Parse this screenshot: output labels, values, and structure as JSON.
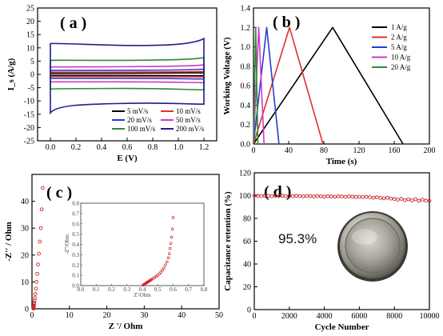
{
  "chart_data": [
    {
      "panel": "(a)",
      "type": "line",
      "xlabel": "E (V)",
      "ylabel": "I_s (A/g)",
      "xlim": [
        -0.1,
        1.3
      ],
      "ylim": [
        -25,
        25
      ],
      "xticks": [
        "0.0",
        "0.2",
        "0.4",
        "0.6",
        "0.8",
        "1.0",
        "1.2"
      ],
      "yticks": [
        "-25",
        "-20",
        "-15",
        "-10",
        "-5",
        "0",
        "5",
        "10",
        "15",
        "20",
        "25"
      ],
      "legend_position": "lower-right",
      "series": [
        {
          "name": "5 mV/s",
          "color": "#000000",
          "upper": [
            0.4,
            0.4,
            0.5,
            0.6
          ],
          "lower": [
            -0.4,
            -0.4,
            -0.4,
            -0.5
          ]
        },
        {
          "name": "10 mV/s",
          "color": "#e0302a",
          "upper": [
            0.8,
            0.8,
            0.9,
            1.1
          ],
          "lower": [
            -0.8,
            -0.8,
            -0.8,
            -0.9
          ]
        },
        {
          "name": "20 mV/s",
          "color": "#2a3bd0",
          "upper": [
            1.5,
            1.5,
            1.6,
            2.0
          ],
          "lower": [
            -1.5,
            -1.5,
            -1.5,
            -1.7
          ]
        },
        {
          "name": "50 mV/s",
          "color": "#d238c8",
          "upper": [
            2.8,
            2.8,
            3.0,
            3.6
          ],
          "lower": [
            -2.8,
            -2.8,
            -2.8,
            -3.1
          ]
        },
        {
          "name": "100 mV/s",
          "color": "#2c8a32",
          "upper": [
            5.3,
            5.2,
            5.4,
            6.3
          ],
          "lower": [
            -5.5,
            -5.3,
            -5.3,
            -5.8
          ]
        },
        {
          "name": "200 mV/s",
          "color": "#1e1e8c",
          "upper": [
            11.6,
            11.0,
            10.8,
            13.5
          ],
          "lower": [
            -14.5,
            -11.2,
            -10.6,
            -11.2
          ]
        }
      ]
    },
    {
      "panel": "(b)",
      "type": "line",
      "xlabel": "Time (s)",
      "ylabel": "Working Voltage (V)",
      "xlim": [
        0,
        200
      ],
      "ylim": [
        0,
        1.4
      ],
      "xticks": [
        "0",
        "40",
        "80",
        "120",
        "160",
        "200"
      ],
      "yticks": [
        "0.0",
        "0.2",
        "0.4",
        "0.6",
        "0.8",
        "1.0",
        "1.2",
        "1.4"
      ],
      "legend_position": "top-right",
      "series": [
        {
          "name": "1 A/g",
          "color": "#000000",
          "x": [
            0,
            90,
            170
          ],
          "y": [
            0,
            1.2,
            0
          ]
        },
        {
          "name": "2 A/g",
          "color": "#e0302a",
          "x": [
            0,
            41,
            79
          ],
          "y": [
            0,
            1.2,
            0
          ]
        },
        {
          "name": "5 A/g",
          "color": "#2a3bd0",
          "x": [
            0,
            15,
            29
          ],
          "y": [
            0,
            1.2,
            0
          ]
        },
        {
          "name": "10 A/g",
          "color": "#d238c8",
          "x": [
            0,
            6,
            12
          ],
          "y": [
            0,
            1.2,
            0
          ]
        },
        {
          "name": "20 A/g",
          "color": "#2c8a32",
          "x": [
            0,
            2.5,
            5
          ],
          "y": [
            0,
            1.2,
            0
          ]
        }
      ]
    },
    {
      "panel": "(c)",
      "type": "scatter",
      "xlabel": "Z '/ Ohm",
      "ylabel": "-Z'' / Ohm",
      "xlim": [
        0,
        50
      ],
      "ylim": [
        0,
        50
      ],
      "xticks": [
        "0",
        "10",
        "20",
        "30",
        "40",
        "50"
      ],
      "yticks": [
        "0",
        "10",
        "20",
        "30",
        "40"
      ],
      "series": [
        {
          "name": "",
          "color": "#cc2222",
          "x": [
            0.42,
            0.43,
            0.44,
            0.46,
            0.48,
            0.5,
            0.55,
            0.6,
            0.68,
            0.78,
            0.9,
            1.05,
            1.2,
            1.4,
            1.6,
            1.85,
            2.1,
            2.35,
            2.6,
            2.85
          ],
          "y": [
            0.1,
            0.2,
            0.35,
            0.55,
            0.8,
            1.1,
            1.6,
            2.2,
            3.0,
            4.0,
            5.5,
            7.5,
            10,
            13,
            16.5,
            20.5,
            25,
            30,
            37,
            45
          ]
        }
      ],
      "inset": {
        "xlabel": "Z'/Ohm",
        "ylabel": "-Z''/Ohm",
        "xlim": [
          0,
          0.8
        ],
        "ylim": [
          0,
          0.8
        ],
        "xticks": [
          "0.0",
          "0.1",
          "0.2",
          "0.3",
          "0.4",
          "0.5",
          "0.6",
          "0.7",
          "0.8"
        ],
        "yticks": [
          "0.0",
          "0.1",
          "0.2",
          "0.3",
          "0.4",
          "0.5",
          "0.6",
          "0.7",
          "0.8"
        ],
        "x": [
          0.405,
          0.41,
          0.415,
          0.42,
          0.425,
          0.43,
          0.435,
          0.44,
          0.445,
          0.45,
          0.455,
          0.46,
          0.47,
          0.48,
          0.49,
          0.5,
          0.51,
          0.52,
          0.53,
          0.54,
          0.55,
          0.56,
          0.57,
          0.575,
          0.58,
          0.585,
          0.59,
          0.595,
          0.6
        ],
        "y": [
          0.005,
          0.01,
          0.015,
          0.02,
          0.025,
          0.03,
          0.035,
          0.04,
          0.045,
          0.05,
          0.055,
          0.06,
          0.07,
          0.08,
          0.09,
          0.1,
          0.115,
          0.13,
          0.15,
          0.17,
          0.2,
          0.23,
          0.27,
          0.31,
          0.36,
          0.41,
          0.47,
          0.55,
          0.66
        ]
      }
    },
    {
      "panel": "(d)",
      "type": "scatter",
      "xlabel": "Cycle Number",
      "ylabel": "Capacitance retention (%)",
      "xlim": [
        0,
        10000
      ],
      "ylim": [
        0,
        120
      ],
      "xticks": [
        "0",
        "2000",
        "4000",
        "6000",
        "8000",
        "10000"
      ],
      "yticks": [
        "0",
        "20",
        "40",
        "60",
        "80",
        "100",
        "120"
      ],
      "annotation": "95.3%",
      "series": [
        {
          "name": "",
          "color": "#cc2222",
          "x": [
            0,
            200,
            400,
            600,
            800,
            1000,
            1200,
            1400,
            1600,
            1800,
            2000,
            2200,
            2400,
            2600,
            2800,
            3000,
            3200,
            3400,
            3600,
            3800,
            4000,
            4200,
            4400,
            4600,
            4800,
            5000,
            5200,
            5400,
            5600,
            5800,
            6000,
            6200,
            6400,
            6600,
            6800,
            7000,
            7200,
            7400,
            7600,
            7800,
            8000,
            8200,
            8400,
            8600,
            8800,
            9000,
            9200,
            9400,
            9600,
            9800,
            10000
          ],
          "y": [
            100,
            99.8,
            99.6,
            99.9,
            99.7,
            99.5,
            99.8,
            99.6,
            99.9,
            99.4,
            99.7,
            99.5,
            99.8,
            99.6,
            99.3,
            99.7,
            99.5,
            99.2,
            99.6,
            99.4,
            99.1,
            99.5,
            99.3,
            99.0,
            99.4,
            99.2,
            98.9,
            99.3,
            99.1,
            98.8,
            99.0,
            98.7,
            98.9,
            98.6,
            98.2,
            98.5,
            98.0,
            97.6,
            98.1,
            97.4,
            97.0,
            96.5,
            97.2,
            96.0,
            96.8,
            95.8,
            96.9,
            95.5,
            96.4,
            95.6,
            95.3
          ]
        }
      ]
    }
  ],
  "panels": {
    "a": {
      "label": "( a )"
    },
    "b": {
      "label": "( b )"
    },
    "c": {
      "label": "( c )"
    },
    "d": {
      "label": "( d )"
    }
  }
}
